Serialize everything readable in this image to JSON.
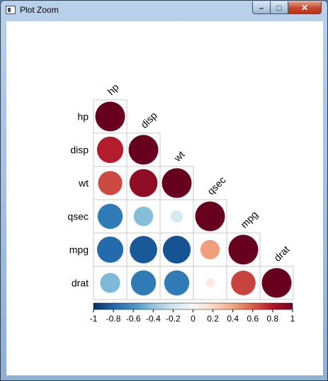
{
  "window": {
    "title": "Plot Zoom",
    "icon": "plot-window-icon",
    "controls": {
      "minimize": "minimize-icon",
      "maximize": "maximize-icon",
      "close": "close-icon"
    }
  },
  "chart_data": {
    "type": "heatmap",
    "shape": "circle",
    "triangle": "lower",
    "variables": [
      "hp",
      "disp",
      "wt",
      "qsec",
      "mpg",
      "drat"
    ],
    "matrix": [
      [
        1.0,
        0.79,
        0.66,
        -0.71,
        -0.78,
        -0.45
      ],
      [
        0.79,
        1.0,
        0.89,
        -0.43,
        -0.85,
        -0.71
      ],
      [
        0.66,
        0.89,
        1.0,
        -0.17,
        -0.87,
        -0.71
      ],
      [
        -0.71,
        -0.43,
        -0.17,
        1.0,
        0.42,
        0.09
      ],
      [
        -0.78,
        -0.85,
        -0.87,
        0.42,
        1.0,
        0.68
      ],
      [
        -0.45,
        -0.71,
        -0.71,
        0.09,
        0.68,
        1.0
      ]
    ],
    "colorbar": {
      "range": [
        -1,
        1
      ],
      "ticks": [
        "-1",
        "-0.8",
        "-0.6",
        "-0.4",
        "-0.2",
        "0",
        "0.2",
        "0.4",
        "0.6",
        "0.8",
        "1"
      ],
      "colors": [
        "#053061",
        "#2166ac",
        "#4393c3",
        "#92c5de",
        "#d1e5f0",
        "#f7f7f7",
        "#fddbc7",
        "#f4a582",
        "#d6604d",
        "#b2182b",
        "#67001f"
      ]
    }
  }
}
